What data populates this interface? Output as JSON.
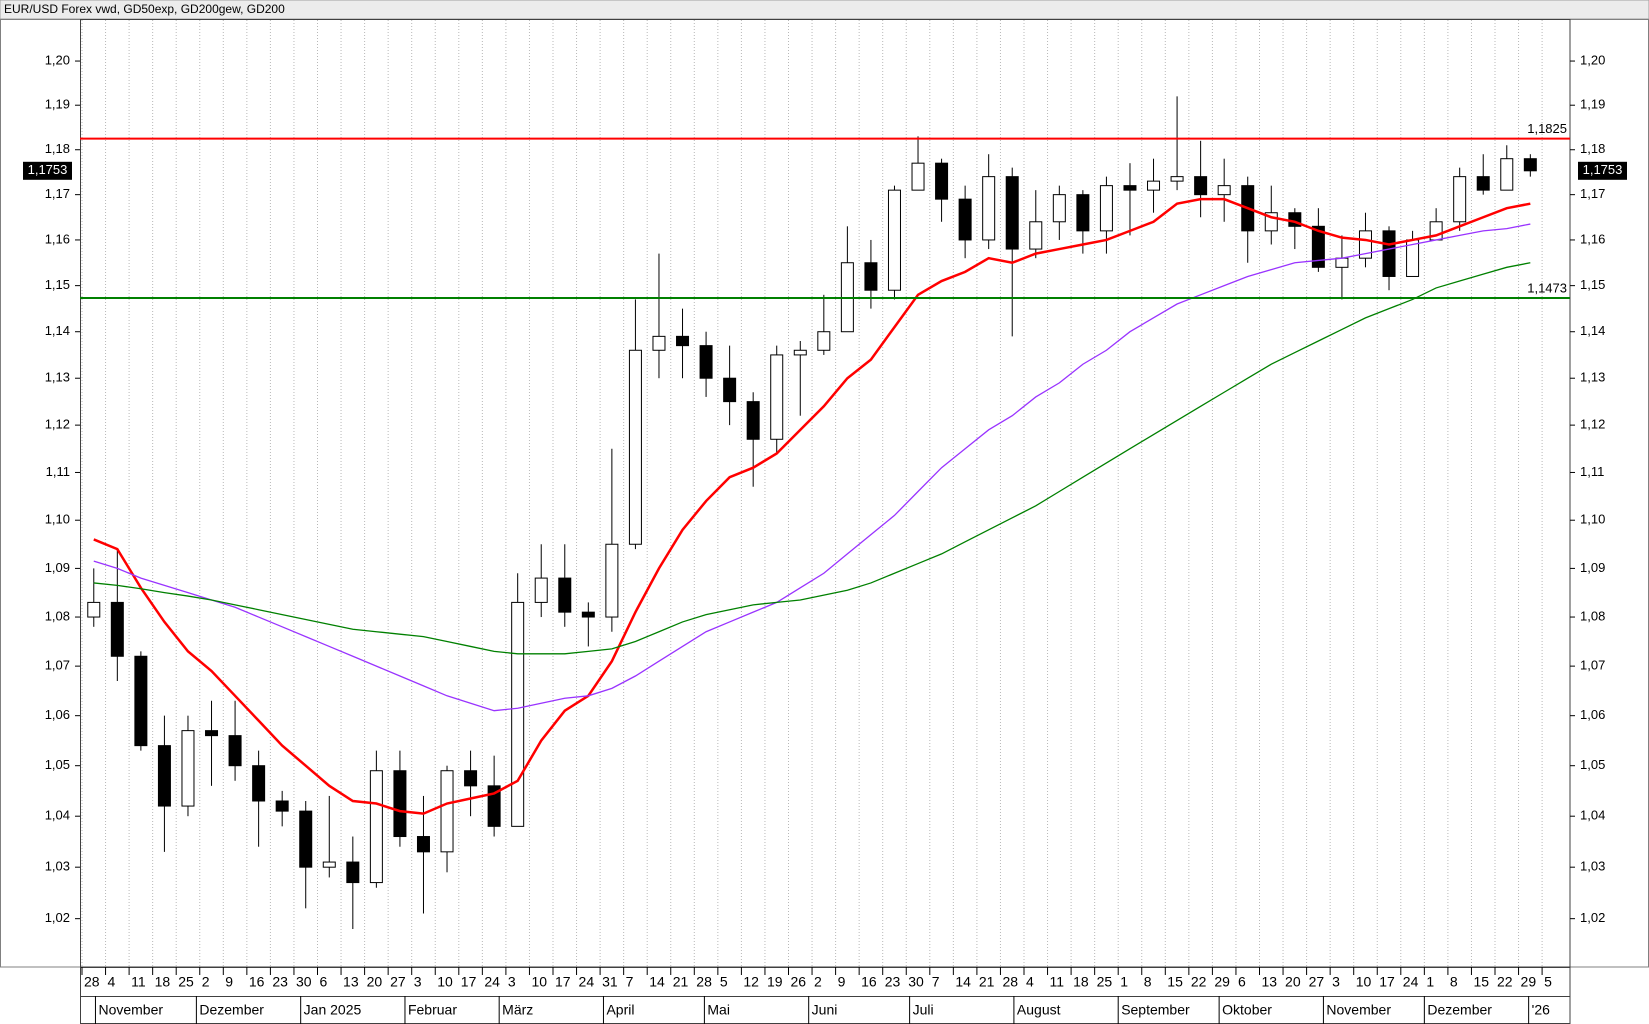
{
  "chart_data": {
    "type": "candlestick",
    "title": "EUR/USD Forex vwd,  GD50exp,  GD200gew,  GD200",
    "categories": [
      "28",
      "4",
      "11",
      "18",
      "25",
      "2",
      "9",
      "16",
      "23",
      "30",
      "6",
      "13",
      "20",
      "27",
      "3",
      "10",
      "17",
      "24",
      "3",
      "10",
      "17",
      "24",
      "31",
      "7",
      "14",
      "21",
      "28",
      "5",
      "12",
      "19",
      "26",
      "2",
      "9",
      "16",
      "23",
      "30",
      "7",
      "14",
      "21",
      "28",
      "4",
      "11",
      "18",
      "25",
      "1",
      "8",
      "15",
      "22",
      "29",
      "6",
      "13",
      "20",
      "27",
      "3",
      "10",
      "17",
      "24",
      "1",
      "8",
      "15",
      "22",
      "29",
      "5"
    ],
    "months": [
      "November",
      "Dezember",
      "Jan 2025",
      "Februar",
      "März",
      "April",
      "Mai",
      "Juni",
      "Juli",
      "August",
      "September",
      "Oktober",
      "November",
      "Dezember",
      "'26"
    ],
    "open": [
      1.08,
      1.083,
      1.072,
      1.054,
      1.042,
      1.057,
      1.056,
      1.05,
      1.043,
      1.041,
      1.03,
      1.031,
      1.027,
      1.049,
      1.036,
      1.033,
      1.049,
      1.046,
      1.038,
      1.083,
      1.088,
      1.081,
      1.08,
      1.095,
      1.136,
      1.139,
      1.137,
      1.13,
      1.125,
      1.117,
      1.135,
      1.136,
      1.14,
      1.155,
      1.149,
      1.171,
      1.177,
      1.169,
      1.16,
      1.174,
      1.158,
      1.164,
      1.17,
      1.162,
      1.172,
      1.171,
      1.173,
      1.174,
      1.17,
      1.172,
      1.162,
      1.166,
      1.163,
      1.154,
      1.156,
      1.162,
      1.152,
      1.16,
      1.164,
      1.174,
      1.171,
      1.178,
      null
    ],
    "high": [
      1.09,
      1.094,
      1.073,
      1.06,
      1.06,
      1.063,
      1.063,
      1.053,
      1.045,
      1.043,
      1.044,
      1.036,
      1.053,
      1.053,
      1.044,
      1.05,
      1.053,
      1.052,
      1.089,
      1.095,
      1.095,
      1.083,
      1.115,
      1.147,
      1.157,
      1.145,
      1.14,
      1.137,
      1.127,
      1.137,
      1.138,
      1.148,
      1.163,
      1.16,
      1.172,
      1.183,
      1.178,
      1.172,
      1.179,
      1.176,
      1.171,
      1.172,
      1.171,
      1.174,
      1.177,
      1.178,
      1.192,
      1.182,
      1.178,
      1.174,
      1.172,
      1.167,
      1.167,
      1.161,
      1.166,
      1.163,
      1.162,
      1.167,
      1.176,
      1.179,
      1.181,
      1.179,
      null
    ],
    "low": [
      1.078,
      1.067,
      1.053,
      1.033,
      1.04,
      1.046,
      1.047,
      1.034,
      1.038,
      1.022,
      1.028,
      1.018,
      1.026,
      1.034,
      1.021,
      1.029,
      1.04,
      1.036,
      1.038,
      1.08,
      1.078,
      1.074,
      1.077,
      1.094,
      1.13,
      1.13,
      1.126,
      1.12,
      1.107,
      1.114,
      1.122,
      1.135,
      1.14,
      1.145,
      1.147,
      1.171,
      1.164,
      1.156,
      1.158,
      1.139,
      1.156,
      1.16,
      1.157,
      1.157,
      1.161,
      1.166,
      1.171,
      1.165,
      1.164,
      1.155,
      1.159,
      1.158,
      1.153,
      1.147,
      1.154,
      1.149,
      1.152,
      1.16,
      1.162,
      1.17,
      1.171,
      1.174,
      null
    ],
    "close": [
      1.083,
      1.072,
      1.054,
      1.042,
      1.057,
      1.056,
      1.05,
      1.043,
      1.041,
      1.03,
      1.031,
      1.027,
      1.049,
      1.036,
      1.033,
      1.049,
      1.046,
      1.038,
      1.083,
      1.088,
      1.081,
      1.08,
      1.095,
      1.136,
      1.139,
      1.137,
      1.13,
      1.125,
      1.117,
      1.135,
      1.136,
      1.14,
      1.155,
      1.149,
      1.171,
      1.177,
      1.169,
      1.16,
      1.174,
      1.158,
      1.164,
      1.17,
      1.162,
      1.172,
      1.171,
      1.173,
      1.174,
      1.17,
      1.172,
      1.162,
      1.166,
      1.163,
      1.154,
      1.156,
      1.162,
      1.152,
      1.16,
      1.164,
      1.174,
      1.171,
      1.178,
      1.1753,
      null
    ],
    "up_color": "#ffffff",
    "down_color": "#000000",
    "series": [
      {
        "color": "#ff0000",
        "values": [
          1.096,
          1.094,
          1.086,
          1.079,
          1.073,
          1.069,
          1.064,
          1.059,
          1.054,
          1.05,
          1.046,
          1.043,
          1.0425,
          1.041,
          1.0405,
          1.0425,
          1.0435,
          1.0445,
          1.047,
          1.055,
          1.061,
          1.064,
          1.071,
          1.081,
          1.09,
          1.098,
          1.104,
          1.109,
          1.111,
          1.114,
          1.119,
          1.124,
          1.13,
          1.134,
          1.141,
          1.148,
          1.151,
          1.153,
          1.156,
          1.155,
          1.157,
          1.158,
          1.159,
          1.16,
          1.162,
          1.164,
          1.168,
          1.169,
          1.169,
          1.167,
          1.165,
          1.164,
          1.162,
          1.1605,
          1.16,
          1.159,
          1.16,
          1.161,
          1.163,
          1.165,
          1.167,
          1.168,
          null
        ]
      },
      {
        "color": "#9933ff",
        "values": [
          1.0915,
          1.09,
          1.088,
          1.0865,
          1.085,
          1.0835,
          1.082,
          1.08,
          1.078,
          1.076,
          1.074,
          1.072,
          1.07,
          1.068,
          1.066,
          1.064,
          1.0625,
          1.061,
          1.0615,
          1.0625,
          1.0635,
          1.064,
          1.0655,
          1.068,
          1.071,
          1.074,
          1.077,
          1.079,
          1.081,
          1.083,
          1.086,
          1.089,
          1.093,
          1.097,
          1.101,
          1.106,
          1.111,
          1.115,
          1.119,
          1.122,
          1.126,
          1.129,
          1.133,
          1.136,
          1.14,
          1.143,
          1.146,
          1.148,
          1.15,
          1.152,
          1.1535,
          1.155,
          1.1555,
          1.156,
          1.157,
          1.158,
          1.159,
          1.16,
          1.161,
          1.162,
          1.1625,
          1.1635,
          null
        ]
      },
      {
        "color": "#008000",
        "values": [
          1.087,
          1.0865,
          1.0858,
          1.085,
          1.0843,
          1.0835,
          1.0825,
          1.0815,
          1.0805,
          1.0795,
          1.0785,
          1.0775,
          1.077,
          1.0765,
          1.076,
          1.075,
          1.074,
          1.073,
          1.0725,
          1.0725,
          1.0725,
          1.073,
          1.0735,
          1.075,
          1.077,
          1.079,
          1.0805,
          1.0815,
          1.0825,
          1.083,
          1.0835,
          1.0845,
          1.0855,
          1.087,
          1.089,
          1.091,
          1.093,
          1.0955,
          1.098,
          1.1005,
          1.103,
          1.106,
          1.109,
          1.112,
          1.115,
          1.118,
          1.121,
          1.124,
          1.127,
          1.13,
          1.133,
          1.1355,
          1.138,
          1.1405,
          1.143,
          1.145,
          1.147,
          1.1495,
          1.151,
          1.1525,
          1.154,
          1.155,
          null
        ]
      }
    ],
    "hlines": [
      {
        "value": 1.1825,
        "label": "1,1825",
        "color": "#ff0000"
      },
      {
        "value": 1.1473,
        "label": "1,1473",
        "color": "#008000"
      }
    ],
    "last": {
      "value": 1.1753,
      "label": "1,1753"
    },
    "ylim": [
      1.0107,
      1.2096
    ],
    "log": true,
    "yticks": [
      {
        "value": 1.02,
        "label": "1,02"
      },
      {
        "value": 1.03,
        "label": "1,03"
      },
      {
        "value": 1.04,
        "label": "1,04"
      },
      {
        "value": 1.05,
        "label": "1,05"
      },
      {
        "value": 1.06,
        "label": "1,06"
      },
      {
        "value": 1.07,
        "label": "1,07"
      },
      {
        "value": 1.08,
        "label": "1,08"
      },
      {
        "value": 1.09,
        "label": "1,09"
      },
      {
        "value": 1.1,
        "label": "1,10"
      },
      {
        "value": 1.11,
        "label": "1,11"
      },
      {
        "value": 1.12,
        "label": "1,12"
      },
      {
        "value": 1.13,
        "label": "1,13"
      },
      {
        "value": 1.14,
        "label": "1,14"
      },
      {
        "value": 1.15,
        "label": "1,15"
      },
      {
        "value": 1.16,
        "label": "1,16"
      },
      {
        "value": 1.17,
        "label": "1,17"
      },
      {
        "value": 1.18,
        "label": "1,18"
      },
      {
        "value": 1.19,
        "label": "1,19"
      },
      {
        "value": 1.2,
        "label": "1,20"
      }
    ],
    "grid": true
  }
}
